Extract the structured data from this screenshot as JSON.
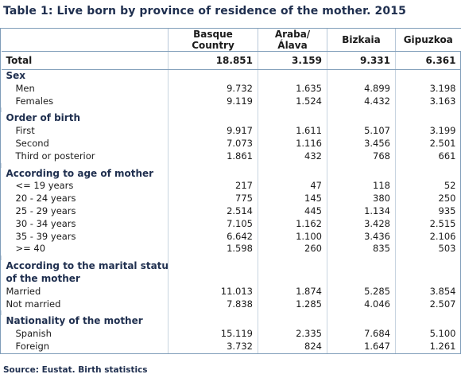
{
  "title": "Table 1: Live born by province of residence of the mother. 2015",
  "columns": [
    "Basque Country",
    "Araba/Álava",
    "Bizkaia",
    "Gipuzkoa"
  ],
  "total": {
    "label": "Total",
    "values": [
      "18.851",
      "3.159",
      "9.331",
      "6.361"
    ]
  },
  "sections": [
    {
      "heading": "Sex",
      "rows": [
        {
          "label": "Men",
          "values": [
            "9.732",
            "1.635",
            "4.899",
            "3.198"
          ]
        },
        {
          "label": "Females",
          "values": [
            "9.119",
            "1.524",
            "4.432",
            "3.163"
          ]
        }
      ]
    },
    {
      "heading": "Order of birth",
      "rows": [
        {
          "label": "First",
          "values": [
            "9.917",
            "1.611",
            "5.107",
            "3.199"
          ]
        },
        {
          "label": "Second",
          "values": [
            "7.073",
            "1.116",
            "3.456",
            "2.501"
          ]
        },
        {
          "label": "Third or posterior",
          "values": [
            "1.861",
            "432",
            "768",
            "661"
          ]
        }
      ]
    },
    {
      "heading": "According to age of mother",
      "rows": [
        {
          "label": "<= 19 years",
          "values": [
            "217",
            "47",
            "118",
            "52"
          ]
        },
        {
          "label": "20 - 24 years",
          "values": [
            "775",
            "145",
            "380",
            "250"
          ]
        },
        {
          "label": "25 - 29 years",
          "values": [
            "2.514",
            "445",
            "1.134",
            "935"
          ]
        },
        {
          "label": "30 - 34 years",
          "values": [
            "7.105",
            "1.162",
            "3.428",
            "2.515"
          ]
        },
        {
          "label": "35 - 39 years",
          "values": [
            "6.642",
            "1.100",
            "3.436",
            "2.106"
          ]
        },
        {
          "label": ">= 40",
          "values": [
            "1.598",
            "260",
            "835",
            "503"
          ]
        }
      ]
    },
    {
      "heading": "According to the marital status of the mother",
      "heading_lines": [
        "According to the marital status",
        "of the mother"
      ],
      "rows": [
        {
          "label": "Married",
          "values": [
            "11.013",
            "1.874",
            "5.285",
            "3.854"
          ]
        },
        {
          "label": "Not married",
          "values": [
            "7.838",
            "1.285",
            "4.046",
            "2.507"
          ]
        }
      ]
    },
    {
      "heading": "Nationality of the mother",
      "rows": [
        {
          "label": "Spanish",
          "values": [
            "15.119",
            "2.335",
            "7.684",
            "5.100"
          ]
        },
        {
          "label": "Foreign",
          "values": [
            "3.732",
            "824",
            "1.647",
            "1.261"
          ]
        }
      ]
    }
  ],
  "source": "Source: Eustat. Birth statistics"
}
